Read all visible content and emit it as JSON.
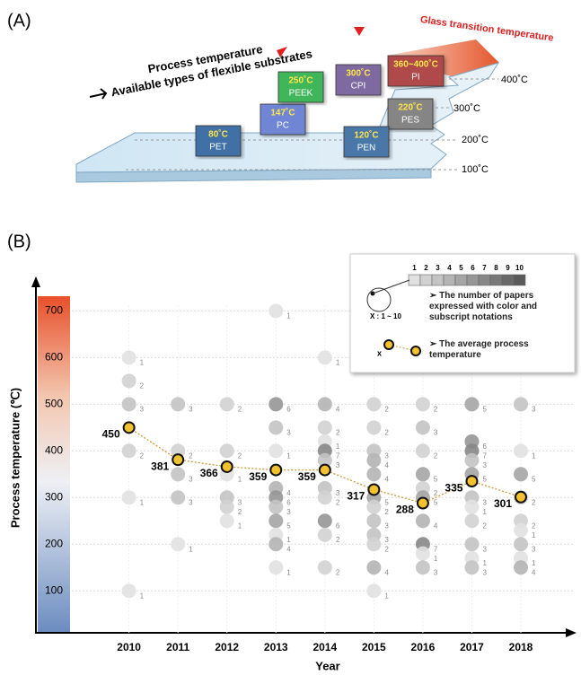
{
  "panel_a": {
    "label": "(A)",
    "process_temperature": "Process temperature",
    "substrates_text": "Available types of flexible substrates",
    "glass_transition": "Glass transition temperature",
    "levels": [
      "400˚C",
      "300˚C",
      "200˚C",
      "100˚C"
    ],
    "cards": [
      {
        "temp": "80˚C",
        "name": "PET"
      },
      {
        "temp": "147˚C",
        "name": "PC"
      },
      {
        "temp": "250˚C",
        "name": "PEEK"
      },
      {
        "temp": "300˚C",
        "name": "CPI"
      },
      {
        "temp": "360~400˚C",
        "name": "PI"
      },
      {
        "temp": "220˚C",
        "name": "PES"
      },
      {
        "temp": "120˚C",
        "name": "PEN"
      }
    ]
  },
  "chart_data": {
    "type": "line",
    "panel_label": "(B)",
    "xlabel": "Year",
    "ylabel": "Process temperature (℃)",
    "x": [
      2010,
      2011,
      2012,
      2013,
      2014,
      2015,
      2016,
      2017,
      2018
    ],
    "xlim": [
      2008.1,
      2019.1
    ],
    "xticks": [
      2010,
      2011,
      2012,
      2013,
      2014,
      2015,
      2016,
      2017,
      2018
    ],
    "ylim": [
      10,
      770
    ],
    "yticks": [
      100,
      200,
      300,
      400,
      500,
      600,
      700
    ],
    "grid": true,
    "series": [
      {
        "name": "➢ The average process temperature",
        "color": "#f2c12e",
        "values": [
          450,
          381,
          366,
          359,
          359,
          317,
          288,
          335,
          301
        ]
      }
    ],
    "points": [
      [
        2010,
        600,
        1
      ],
      [
        2010,
        550,
        2
      ],
      [
        2010,
        500,
        3
      ],
      [
        2010,
        400,
        2
      ],
      [
        2010,
        300,
        1
      ],
      [
        2010,
        100,
        1
      ],
      [
        2011,
        500,
        3
      ],
      [
        2011,
        400,
        2
      ],
      [
        2011,
        350,
        3
      ],
      [
        2011,
        300,
        3
      ],
      [
        2011,
        200,
        1
      ],
      [
        2012,
        500,
        2
      ],
      [
        2012,
        400,
        2
      ],
      [
        2012,
        350,
        1
      ],
      [
        2012,
        300,
        3
      ],
      [
        2012,
        280,
        2
      ],
      [
        2012,
        250,
        1
      ],
      [
        2013,
        700,
        1
      ],
      [
        2013,
        500,
        6
      ],
      [
        2013,
        450,
        3
      ],
      [
        2013,
        400,
        1
      ],
      [
        2013,
        320,
        4
      ],
      [
        2013,
        300,
        6
      ],
      [
        2013,
        280,
        3
      ],
      [
        2013,
        250,
        5
      ],
      [
        2013,
        220,
        1
      ],
      [
        2013,
        200,
        4
      ],
      [
        2013,
        150,
        1
      ],
      [
        2014,
        600,
        1
      ],
      [
        2014,
        500,
        4
      ],
      [
        2014,
        450,
        2
      ],
      [
        2014,
        420,
        1
      ],
      [
        2014,
        400,
        7
      ],
      [
        2014,
        380,
        3
      ],
      [
        2014,
        320,
        3
      ],
      [
        2014,
        300,
        2
      ],
      [
        2014,
        250,
        6
      ],
      [
        2014,
        220,
        2
      ],
      [
        2014,
        150,
        2
      ],
      [
        2015,
        500,
        2
      ],
      [
        2015,
        450,
        2
      ],
      [
        2015,
        400,
        3
      ],
      [
        2015,
        380,
        4
      ],
      [
        2015,
        350,
        4
      ],
      [
        2015,
        300,
        5
      ],
      [
        2015,
        280,
        2
      ],
      [
        2015,
        250,
        3
      ],
      [
        2015,
        220,
        3
      ],
      [
        2015,
        200,
        2
      ],
      [
        2015,
        150,
        4
      ],
      [
        2015,
        100,
        1
      ],
      [
        2016,
        500,
        2
      ],
      [
        2016,
        450,
        3
      ],
      [
        2016,
        400,
        2
      ],
      [
        2016,
        350,
        5
      ],
      [
        2016,
        320,
        2
      ],
      [
        2016,
        300,
        5
      ],
      [
        2016,
        250,
        4
      ],
      [
        2016,
        200,
        7
      ],
      [
        2016,
        180,
        1
      ],
      [
        2016,
        150,
        3
      ],
      [
        2017,
        500,
        5
      ],
      [
        2017,
        420,
        6
      ],
      [
        2017,
        400,
        7
      ],
      [
        2017,
        380,
        3
      ],
      [
        2017,
        350,
        5
      ],
      [
        2017,
        300,
        3
      ],
      [
        2017,
        280,
        1
      ],
      [
        2017,
        250,
        2
      ],
      [
        2017,
        200,
        3
      ],
      [
        2017,
        170,
        1
      ],
      [
        2017,
        150,
        3
      ],
      [
        2018,
        500,
        3
      ],
      [
        2018,
        400,
        1
      ],
      [
        2018,
        350,
        5
      ],
      [
        2018,
        300,
        2
      ],
      [
        2018,
        250,
        2
      ],
      [
        2018,
        230,
        1
      ],
      [
        2018,
        200,
        3
      ],
      [
        2018,
        170,
        1
      ],
      [
        2018,
        150,
        4
      ]
    ],
    "legend": {
      "scale": [
        1,
        2,
        3,
        4,
        5,
        6,
        7,
        8,
        9,
        10
      ],
      "scale_note": "X : 1 ~ 10",
      "count_text": "➢ The number of papers expressed with color and subscript notations",
      "marker_note": "x"
    }
  }
}
